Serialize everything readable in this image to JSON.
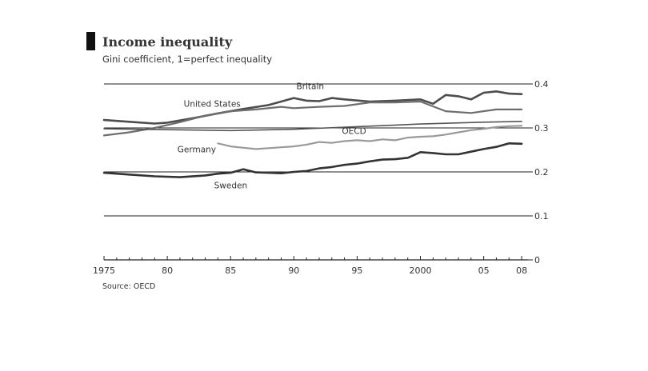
{
  "chart_data": {
    "type": "line",
    "title": "Income inequality",
    "subtitle": "Gini coefficient, 1=perfect inequality",
    "source": "Source: OECD",
    "x_ticks": [
      1975,
      1980,
      1985,
      1990,
      1995,
      2000,
      2005,
      2008
    ],
    "x_tick_labels": [
      "1975",
      "80",
      "85",
      "90",
      "95",
      "2000",
      "05",
      "08"
    ],
    "xlim": [
      1975,
      2008.5
    ],
    "ylim": [
      0,
      0.4
    ],
    "y_ticks": [
      0,
      0.1,
      0.2,
      0.3,
      0.4
    ],
    "y_tick_labels": [
      "0",
      "0.1",
      "0.2",
      "0.3",
      "0.4"
    ],
    "grid": true,
    "series": [
      {
        "name": "Britain",
        "color": "#4d4d4d",
        "width": 2.6,
        "x": [
          1975,
          1977,
          1979,
          1980,
          1982,
          1984,
          1986,
          1988,
          1990,
          1991,
          1992,
          1993,
          1994,
          1996,
          1998,
          2000,
          2001,
          2002,
          2003,
          2004,
          2005,
          2006,
          2007,
          2008
        ],
        "y": [
          0.318,
          0.314,
          0.31,
          0.312,
          0.322,
          0.333,
          0.343,
          0.352,
          0.368,
          0.362,
          0.361,
          0.368,
          0.365,
          0.36,
          0.362,
          0.365,
          0.355,
          0.375,
          0.372,
          0.365,
          0.38,
          0.383,
          0.378,
          0.377
        ]
      },
      {
        "name": "United States",
        "color": "#6e6e6e",
        "width": 2.2,
        "x": [
          1975,
          1977,
          1979,
          1981,
          1983,
          1985,
          1987,
          1989,
          1990,
          1992,
          1994,
          1996,
          1998,
          2000,
          2002,
          2004,
          2006,
          2008
        ],
        "y": [
          0.283,
          0.29,
          0.3,
          0.313,
          0.328,
          0.338,
          0.342,
          0.348,
          0.345,
          0.348,
          0.35,
          0.358,
          0.358,
          0.36,
          0.338,
          0.334,
          0.342,
          0.342
        ]
      },
      {
        "name": "OECD",
        "color": "#555555",
        "width": 1.6,
        "x": [
          1975,
          1980,
          1985,
          1990,
          1995,
          2000,
          2005,
          2008
        ],
        "y": [
          0.298,
          0.296,
          0.294,
          0.297,
          0.303,
          0.309,
          0.313,
          0.315
        ]
      },
      {
        "name": "Germany",
        "color": "#9a9a9a",
        "width": 2.2,
        "x": [
          1984,
          1985,
          1986,
          1987,
          1988,
          1989,
          1990,
          1991,
          1992,
          1993,
          1994,
          1995,
          1996,
          1997,
          1998,
          1999,
          2000,
          2001,
          2002,
          2003,
          2004,
          2005,
          2006,
          2007,
          2008
        ],
        "y": [
          0.265,
          0.258,
          0.255,
          0.252,
          0.254,
          0.256,
          0.258,
          0.262,
          0.268,
          0.266,
          0.27,
          0.272,
          0.27,
          0.274,
          0.272,
          0.278,
          0.28,
          0.281,
          0.285,
          0.29,
          0.295,
          0.298,
          0.302,
          0.304,
          0.305
        ]
      },
      {
        "name": "Sweden",
        "color": "#333333",
        "width": 2.6,
        "x": [
          1975,
          1977,
          1979,
          1981,
          1983,
          1984,
          1985,
          1986,
          1987,
          1988,
          1989,
          1990,
          1991,
          1992,
          1993,
          1994,
          1995,
          1996,
          1997,
          1998,
          1999,
          2000,
          2001,
          2002,
          2003,
          2004,
          2005,
          2006,
          2007,
          2008
        ],
        "y": [
          0.198,
          0.194,
          0.19,
          0.188,
          0.192,
          0.196,
          0.198,
          0.206,
          0.199,
          0.198,
          0.197,
          0.2,
          0.202,
          0.208,
          0.211,
          0.216,
          0.219,
          0.224,
          0.228,
          0.229,
          0.232,
          0.245,
          0.243,
          0.24,
          0.24,
          0.246,
          0.252,
          0.257,
          0.265,
          0.264
        ]
      }
    ],
    "annotations": [
      {
        "text": "Britain",
        "series": "Britain",
        "x": 1990.2,
        "y": 0.388
      },
      {
        "text": "United States",
        "series": "United States",
        "x": 1981.3,
        "y": 0.348
      },
      {
        "text": "OECD",
        "series": "OECD",
        "x": 1993.8,
        "y": 0.286
      },
      {
        "text": "Germany",
        "series": "Germany",
        "x": 1980.8,
        "y": 0.245
      },
      {
        "text": "Sweden",
        "series": "Sweden",
        "x": 1983.7,
        "y": 0.163
      }
    ]
  }
}
